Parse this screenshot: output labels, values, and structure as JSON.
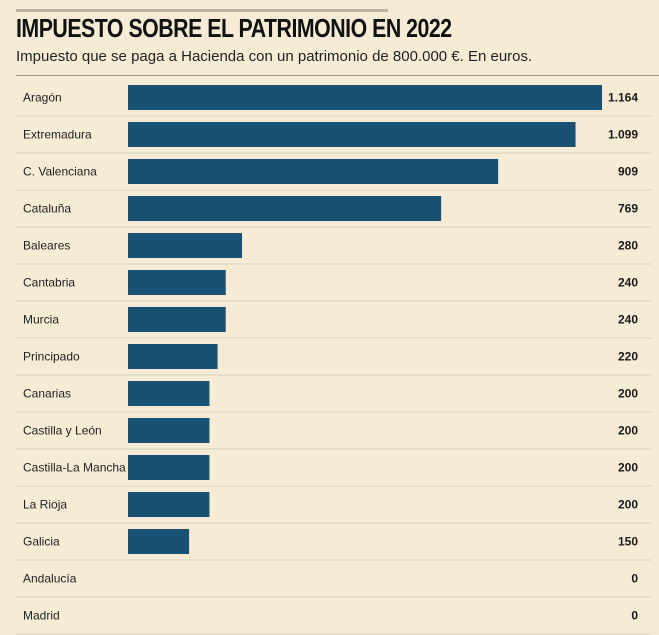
{
  "header": {
    "title": "IMPUESTO SOBRE EL PATRIMONIO EN 2022",
    "subtitle": "Impuesto que se paga a Hacienda con un patrimonio de 800.000 €. En euros."
  },
  "colors": {
    "background": "#f6ecd6",
    "bar": "#1a5070",
    "row_divider": "#d8cfbc"
  },
  "chart_data": {
    "type": "bar",
    "orientation": "horizontal",
    "title": "IMPUESTO SOBRE EL PATRIMONIO EN 2022",
    "subtitle": "Impuesto que se paga a Hacienda con un patrimonio de 800.000 €. En euros.",
    "categories": [
      "Aragón",
      "Extremadura",
      "C. Valenciana",
      "Cataluña",
      "Baleares",
      "Cantabria",
      "Murcia",
      "Principado",
      "Canarias",
      "Castilla y León",
      "Castilla-La Mancha",
      "La Rioja",
      "Galicia",
      "Andalucía",
      "Madrid"
    ],
    "values": [
      1164,
      1099,
      909,
      769,
      280,
      240,
      240,
      220,
      200,
      200,
      200,
      200,
      150,
      0,
      0
    ],
    "value_labels": [
      "1.164",
      "1.099",
      "909",
      "769",
      "280",
      "240",
      "240",
      "220",
      "200",
      "200",
      "200",
      "200",
      "150",
      "0",
      "0"
    ],
    "xlim": [
      0,
      1164
    ],
    "grid": false,
    "legend": "none"
  }
}
